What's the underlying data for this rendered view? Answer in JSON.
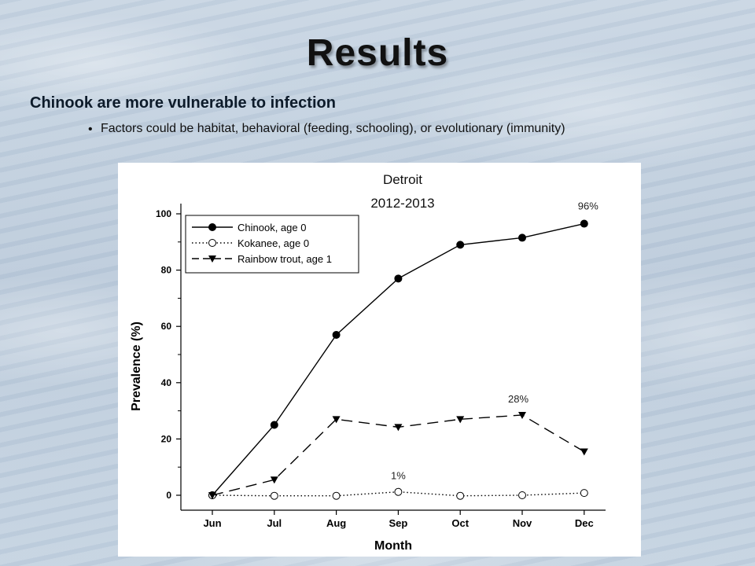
{
  "slide": {
    "title": "Results",
    "heading": "Chinook are more vulnerable to infection",
    "bullet": "Factors could be habitat, behavioral (feeding, schooling), or evolutionary (immunity)",
    "bullet_marker": "•"
  },
  "chart_data": {
    "type": "line",
    "title": "Detroit",
    "subtitle": "2012-2013",
    "xlabel": "Month",
    "ylabel": "Prevalence (%)",
    "categories": [
      "Jun",
      "Jul",
      "Aug",
      "Sep",
      "Oct",
      "Nov",
      "Dec"
    ],
    "ylim": [
      0,
      100
    ],
    "yticks": [
      0,
      20,
      40,
      60,
      80,
      100
    ],
    "grid": false,
    "legend_position": "top-left",
    "series": [
      {
        "name": "Chinook, age 0",
        "values": [
          0,
          25,
          57,
          77,
          89,
          91.5,
          96.5
        ],
        "marker": "filled-circle",
        "line": "solid",
        "color": "#000000"
      },
      {
        "name": "Kokanee, age 0",
        "values": [
          0,
          -0.2,
          -0.2,
          1.2,
          -0.2,
          0,
          0.8
        ],
        "marker": "open-circle",
        "line": "dotted",
        "color": "#000000"
      },
      {
        "name": "Rainbow trout, age 1",
        "values": [
          0,
          5.5,
          27,
          24.2,
          27,
          28.5,
          15.5
        ],
        "marker": "filled-triangle-down",
        "line": "dashed",
        "color": "#000000"
      }
    ],
    "annotations": [
      {
        "text": "96%",
        "series": 0,
        "index": 6
      },
      {
        "text": "28%",
        "series": 2,
        "index": 5
      },
      {
        "text": "1%",
        "series": 1,
        "index": 3
      }
    ]
  }
}
